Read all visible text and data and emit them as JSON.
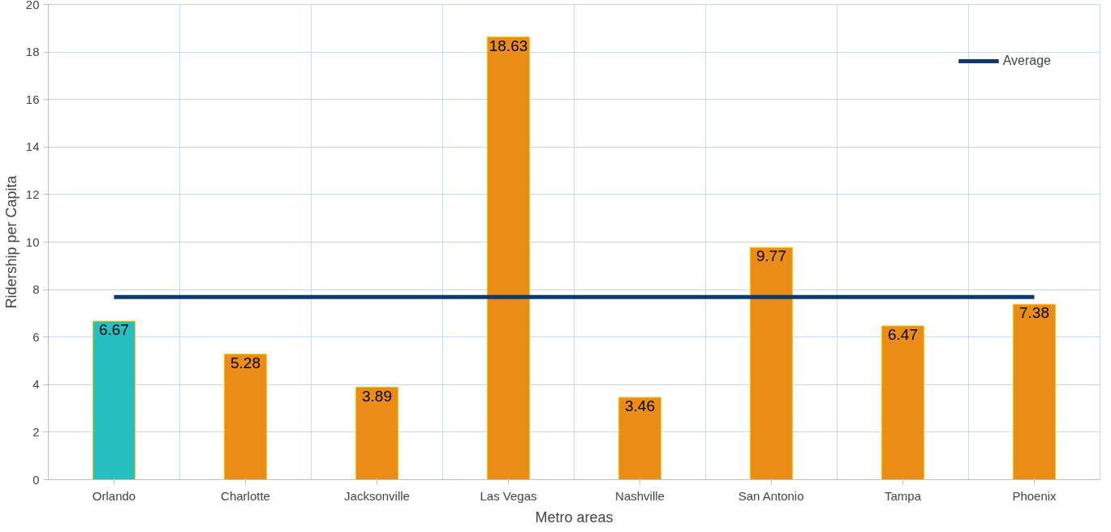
{
  "chart_data": {
    "type": "bar",
    "xlabel": "Metro areas",
    "ylabel": "Ridership per Capita",
    "categories": [
      "Orlando",
      "Charlotte",
      "Jacksonville",
      "Las Vegas",
      "Nashville",
      "San Antonio",
      "Tampa",
      "Phoenix"
    ],
    "series": [
      {
        "colors": [
          "#26bfbf",
          "#eb8c17",
          "#eb8c17",
          "#eb8c17",
          "#eb8c17",
          "#eb8c17",
          "#eb8c17",
          "#eb8c17"
        ],
        "values": [
          6.67,
          5.28,
          3.89,
          18.63,
          3.46,
          9.77,
          6.47,
          7.38
        ],
        "value_labels": [
          "6.67",
          "5.28",
          "3.89",
          "18.63",
          "3.46",
          "9.77",
          "6.47",
          "7.38"
        ]
      },
      {
        "type": "line",
        "name": "Average",
        "color": "#0d3a6e",
        "values": [
          7.69,
          7.69,
          7.69,
          7.69,
          7.69,
          7.69,
          7.69,
          7.69
        ]
      }
    ],
    "ylim": [
      0,
      20
    ],
    "yticks": [
      0,
      2,
      4,
      6,
      8,
      10,
      12,
      14,
      16,
      18,
      20
    ],
    "grid": true,
    "legend": "top right"
  }
}
